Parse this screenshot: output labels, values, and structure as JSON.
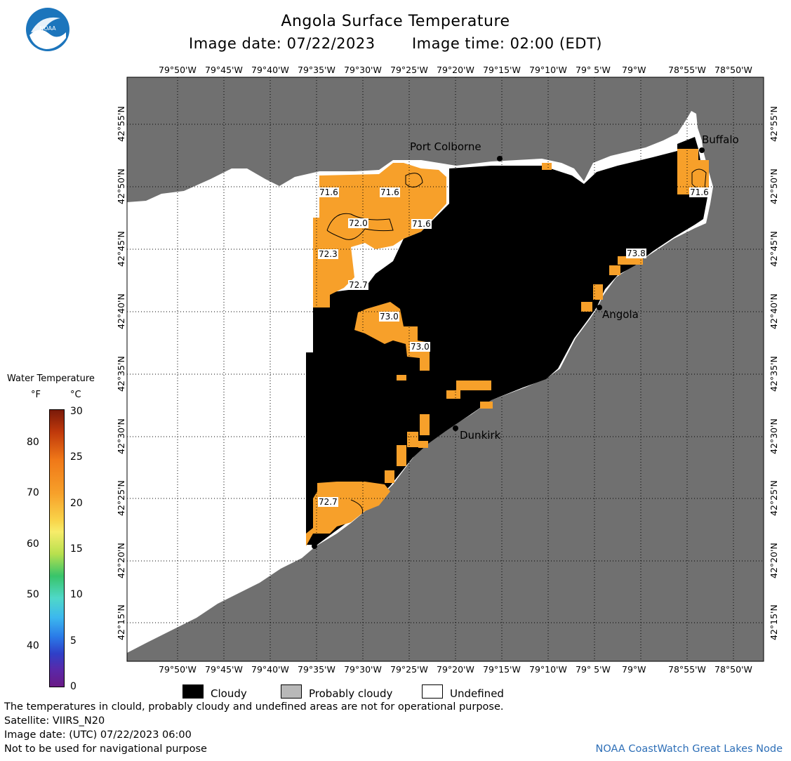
{
  "header": {
    "title": "Angola Surface Temperature",
    "image_date": "Image date: 07/22/2023",
    "image_time": "Image time: 02:00 (EDT)"
  },
  "map": {
    "lon_labels": [
      "79°50'W",
      "79°45'W",
      "79°40'W",
      "79°35'W",
      "79°30'W",
      "79°25'W",
      "79°20'W",
      "79°15'W",
      "79°10'W",
      "79° 5'W",
      "79°W",
      "78°55'W",
      "78°50'W"
    ],
    "lat_labels": [
      "42°55'N",
      "42°50'N",
      "42°45'N",
      "42°40'N",
      "42°35'N",
      "42°30'N",
      "42°25'N",
      "42°20'N",
      "42°15'N"
    ],
    "cities": [
      {
        "name": "Port Colborne"
      },
      {
        "name": "Buffalo"
      },
      {
        "name": "Angola"
      },
      {
        "name": "Dunkirk"
      }
    ],
    "contour_labels": [
      "71.6",
      "71.6",
      "71.6",
      "71.6",
      "72.0",
      "72.3",
      "72.7",
      "73.0",
      "73.0",
      "73.8",
      "72.7"
    ],
    "colors": {
      "land": "#707070",
      "undefined": "#ffffff",
      "cloudy": "#000000",
      "water": "#f7a02a"
    }
  },
  "colorbar": {
    "title": "Water Temperature",
    "unit_f": "°F",
    "unit_c": "°C",
    "f_ticks": [
      "80",
      "70",
      "60",
      "50",
      "40"
    ],
    "c_ticks": [
      "30",
      "25",
      "20",
      "15",
      "10",
      "5",
      "0"
    ]
  },
  "legend": {
    "cloudy": "Cloudy",
    "probably_cloudy": "Probably cloudy",
    "undefined": "Undefined"
  },
  "footer": {
    "disclaimer": "The temperatures in clould, probably cloudy and undefined areas are not for operational purpose.",
    "satellite": "Satellite: VIIRS_N20",
    "utc_date": "Image date: (UTC) 07/22/2023  06:00",
    "nav_warning": "Not to be used for navigational purpose",
    "credit": "NOAA CoastWatch Great Lakes Node"
  }
}
